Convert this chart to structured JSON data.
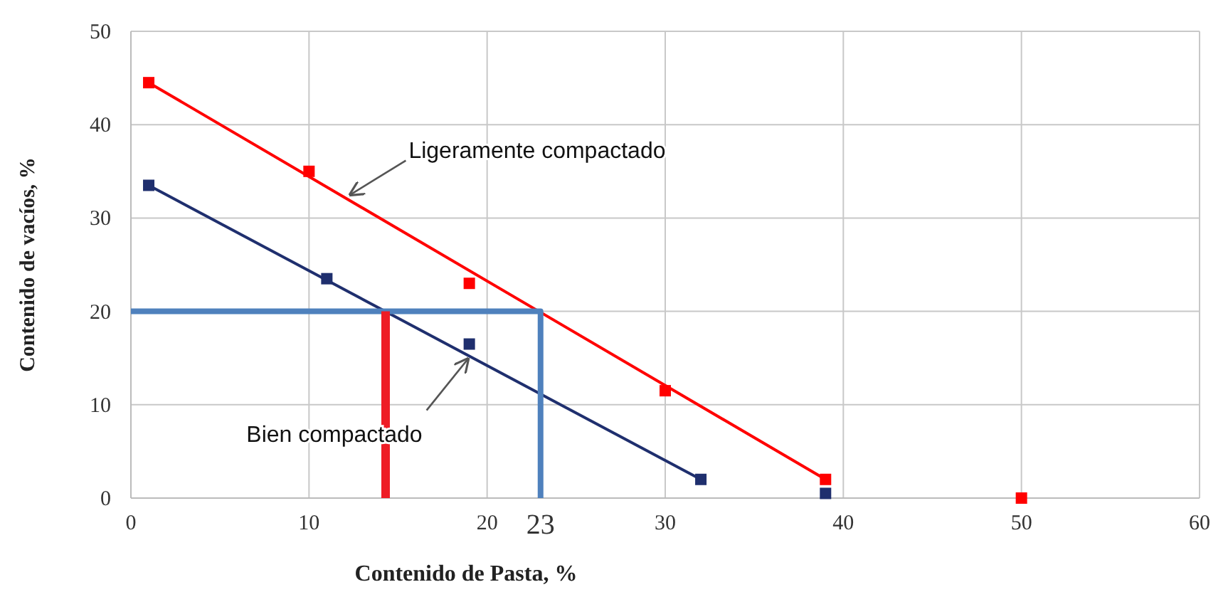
{
  "chart_data": {
    "type": "scatter",
    "xlabel": "Contenido de Pasta, %",
    "ylabel": "Contenido de vacíos, %",
    "xlim": [
      0,
      60
    ],
    "ylim": [
      0,
      50
    ],
    "xticks": [
      0,
      10,
      20,
      30,
      40,
      50,
      60
    ],
    "yticks": [
      0,
      10,
      20,
      30,
      40,
      50
    ],
    "grid": true,
    "series": [
      {
        "type": "line",
        "color": "#ff0000",
        "marker": "none",
        "x": [
          1,
          39
        ],
        "values": [
          44.5,
          2
        ]
      },
      {
        "type": "line",
        "color": "#1f2f6e",
        "marker": "none",
        "x": [
          1,
          32
        ],
        "values": [
          33.5,
          2
        ]
      },
      {
        "color": "#ff0000",
        "marker": "square",
        "x": [
          1,
          10,
          19,
          30,
          39,
          50
        ],
        "values": [
          44.5,
          35,
          23,
          11.5,
          2,
          0
        ]
      },
      {
        "color": "#1f2f6e",
        "marker": "square",
        "x": [
          1,
          11,
          19,
          32,
          39
        ],
        "values": [
          33.5,
          23.5,
          16.5,
          2,
          0.5
        ]
      },
      {
        "type": "line",
        "color": "#4f81bd",
        "marker": "none",
        "x": [
          0,
          23,
          23
        ],
        "values": [
          20,
          20,
          0
        ]
      },
      {
        "type": "line",
        "color": "#ee1c25",
        "marker": "none",
        "x": [
          14.3,
          14.3
        ],
        "values": [
          0,
          20
        ]
      }
    ],
    "annotations": [
      {
        "text": "Ligeramente compactado",
        "x": 12,
        "y": 32.2
      },
      {
        "text": "Bien compactado",
        "x": 19,
        "y": 15.2
      },
      {
        "text": "23",
        "x": 23,
        "y": 0
      }
    ]
  }
}
